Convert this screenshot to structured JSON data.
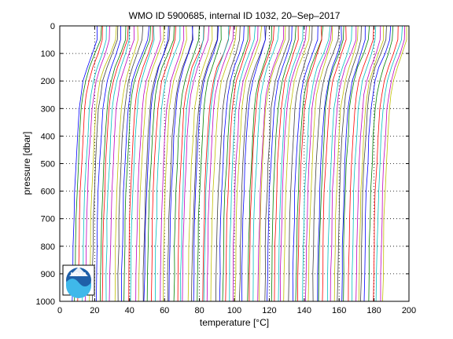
{
  "chart_data": {
    "type": "line",
    "title": "WMO ID 5900685, internal ID 1032, 20–Sep–2017",
    "xlabel": "temperature [",
    "xlabel_unit": "°C",
    "xlabel_close": "]",
    "ylabel": "pressure [dbar]",
    "xlim": [
      0,
      200
    ],
    "ylim": [
      0,
      1000
    ],
    "y_reversed": true,
    "x_ticks": [
      "0",
      "20",
      "40",
      "60",
      "80",
      "100",
      "120",
      "140",
      "160",
      "180",
      "200"
    ],
    "y_ticks": [
      "0",
      "100",
      "200",
      "300",
      "400",
      "500",
      "600",
      "700",
      "800",
      "900",
      "1000"
    ],
    "grid": true,
    "grid_style": "dotted",
    "legend": "none",
    "series_colors": [
      "#0000ff",
      "#008000",
      "#ff0000",
      "#00bfbf",
      "#bf00bf",
      "#bfbf00",
      "#404040"
    ],
    "profile_count": 90,
    "profile_offset_step": 2,
    "profile_base": {
      "pressure": [
        0,
        50,
        100,
        150,
        200,
        250,
        300,
        400,
        500,
        600,
        700,
        800,
        900,
        1000
      ],
      "temperature": [
        21.5,
        21.2,
        18.5,
        15.5,
        13.2,
        11.8,
        10.8,
        9.8,
        9.0,
        8.3,
        7.8,
        7.5,
        7.2,
        7.0
      ]
    }
  },
  "logo": {
    "name": "noaa-logo",
    "text": "NOAA"
  }
}
